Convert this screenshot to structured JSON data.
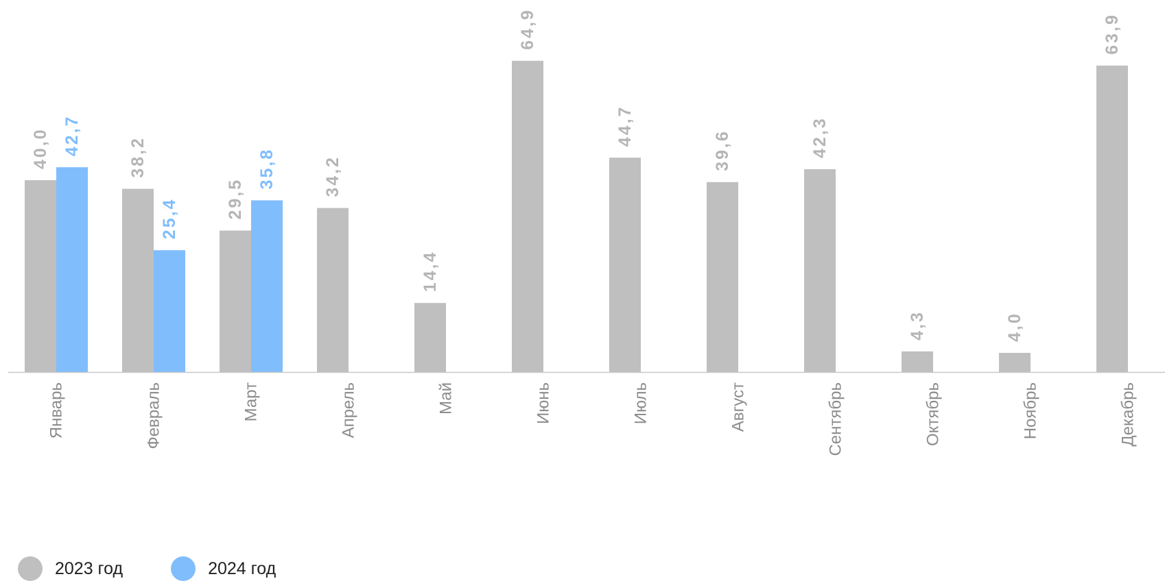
{
  "chart_data": {
    "type": "bar",
    "categories": [
      "Январь",
      "Февраль",
      "Март",
      "Апрель",
      "Май",
      "Июнь",
      "Июль",
      "Август",
      "Сентябрь",
      "Октябрь",
      "Ноябрь",
      "Декабрь"
    ],
    "series": [
      {
        "name": "2023 год",
        "color": "#bfbfbf",
        "label_color": "#b5b5b5",
        "values": [
          40.0,
          38.2,
          29.5,
          34.2,
          14.4,
          64.9,
          44.7,
          39.6,
          42.3,
          4.3,
          4.0,
          63.9
        ],
        "labels": [
          "40,0",
          "38,2",
          "29,5",
          "34,2",
          "14,4",
          "64,9",
          "44,7",
          "39,6",
          "42,3",
          "4,3",
          "4,0",
          "63,9"
        ]
      },
      {
        "name": "2024 год",
        "color": "#80bdfc",
        "label_color": "#80bdfc",
        "values": [
          42.7,
          25.4,
          35.8,
          null,
          null,
          null,
          null,
          null,
          null,
          null,
          null,
          null
        ],
        "labels": [
          "42,7",
          "25,4",
          "35,8",
          null,
          null,
          null,
          null,
          null,
          null,
          null,
          null,
          null
        ]
      }
    ],
    "title": "",
    "xlabel": "",
    "ylabel": "",
    "ylim": [
      0,
      70
    ],
    "grid": false,
    "legend": "bottom-left",
    "axis_color": "#c8c8c8"
  }
}
